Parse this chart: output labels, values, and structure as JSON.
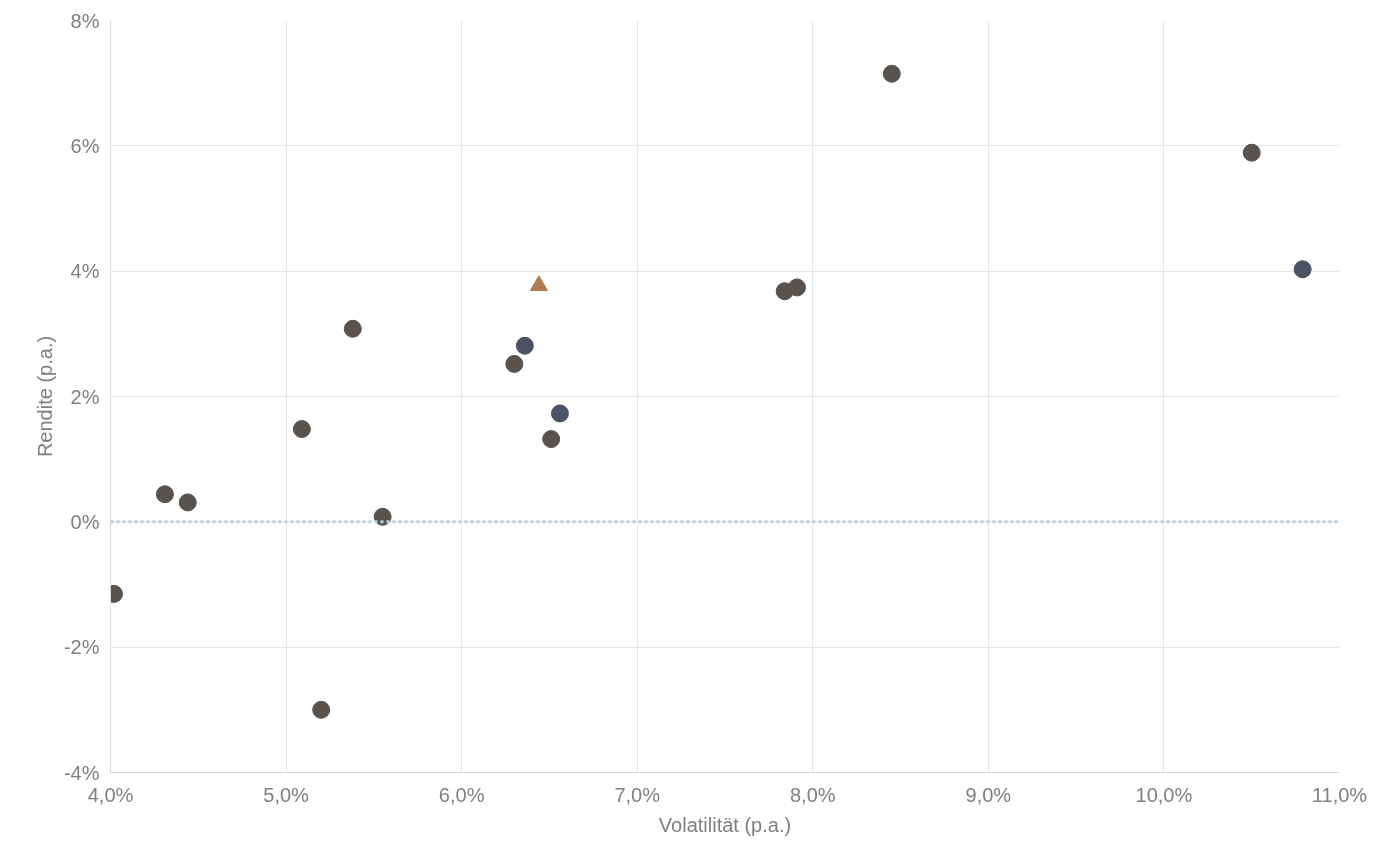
{
  "chart_data": {
    "type": "scatter",
    "xlabel": "Volatilität (p.a.)",
    "ylabel": "Rendite (p.a.)",
    "series": [
      {
        "x": [
          4.02,
          4.31,
          4.44,
          5.09,
          5.2,
          5.38,
          5.55,
          6.3,
          6.36,
          6.51,
          6.56,
          7.84,
          7.91,
          8.45,
          10.5,
          10.79
        ],
        "values": [
          -1.15,
          0.44,
          0.31,
          1.48,
          -3.0,
          3.08,
          0.08,
          2.52,
          2.81,
          1.32,
          1.73,
          3.68,
          3.74,
          7.15,
          5.89,
          4.03
        ],
        "colors": [
          "#5a524c",
          "#5a524c",
          "#5a524c",
          "#5a524c",
          "#5a524c",
          "#5a524c",
          "#5a524c",
          "#5a524c",
          "#4b5263",
          "#5a524c",
          "#4b5263",
          "#5a524c",
          "#5a524c",
          "#5a524c",
          "#5a524c",
          "#4b5263"
        ],
        "marker": "circle"
      },
      {
        "x": [
          6.44
        ],
        "values": [
          3.77
        ],
        "color": "#b07c4e",
        "marker": "triangle"
      }
    ],
    "xlim": [
      4,
      11
    ],
    "ylim": [
      -4,
      8
    ],
    "xticks": [
      {
        "value": 4,
        "label": "4,0%"
      },
      {
        "value": 5,
        "label": "5,0%"
      },
      {
        "value": 6,
        "label": "6,0%"
      },
      {
        "value": 7,
        "label": "7,0%"
      },
      {
        "value": 8,
        "label": "8,0%"
      },
      {
        "value": 9,
        "label": "9,0%"
      },
      {
        "value": 10,
        "label": "10,0%"
      },
      {
        "value": 11,
        "label": "11,0%"
      }
    ],
    "yticks": [
      {
        "value": -4,
        "label": "-4%"
      },
      {
        "value": -2,
        "label": "-2%"
      },
      {
        "value": 0,
        "label": "0%"
      },
      {
        "value": 2,
        "label": "2%"
      },
      {
        "value": 4,
        "label": "4%"
      },
      {
        "value": 6,
        "label": "6%"
      },
      {
        "value": 8,
        "label": "8%"
      }
    ],
    "ref_lines": [
      {
        "axis": "y",
        "value": 0,
        "color": "#bccfe0",
        "line_style": "dotted"
      }
    ],
    "grid": true
  }
}
